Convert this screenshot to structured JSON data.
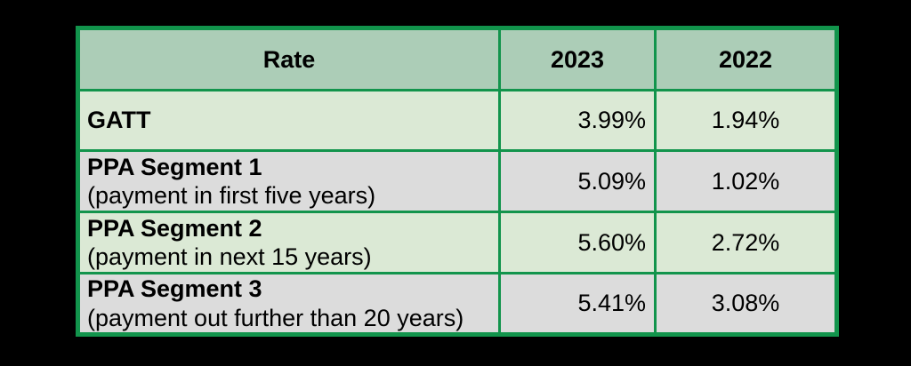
{
  "chart_data": {
    "type": "table",
    "title": "",
    "columns": [
      "Rate",
      "2023",
      "2022"
    ],
    "rows": [
      [
        "GATT",
        "3.99%",
        "1.94%"
      ],
      [
        "PPA Segment 1 (payment in first five years)",
        "5.09%",
        "1.02%"
      ],
      [
        "PPA Segment 2 (payment in next 15 years)",
        "5.60%",
        "2.72%"
      ],
      [
        "PPA Segment 3 (payment out further than 20 years)",
        "5.41%",
        "3.08%"
      ]
    ]
  },
  "ui": {
    "columns": [
      "Rate",
      "2023",
      "2022"
    ],
    "rows": [
      {
        "label": "GATT",
        "sub": "",
        "v2023": "3.99%",
        "v2022": "1.94%"
      },
      {
        "label": "PPA Segment 1",
        "sub": "(payment in first five years)",
        "v2023": "5.09%",
        "v2022": "1.02%"
      },
      {
        "label": "PPA Segment 2",
        "sub": "(payment in next 15 years)",
        "v2023": "5.60%",
        "v2022": "2.72%"
      },
      {
        "label": "PPA Segment 3",
        "sub": "(payment out further than 20 years)",
        "v2023": "5.41%",
        "v2022": "3.08%"
      }
    ],
    "colors": {
      "page_bg": "#000000",
      "border_green": "#12944c",
      "header_bg": "#accdb7",
      "row_green": "#dbe9d5",
      "row_gray": "#dcdcdc",
      "text": "#000000"
    }
  }
}
